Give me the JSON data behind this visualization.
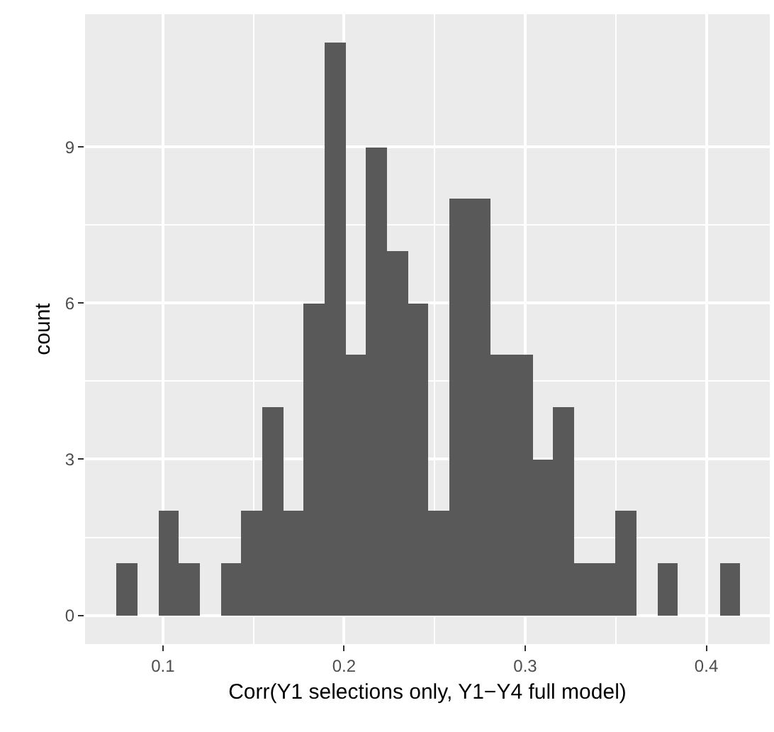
{
  "chart_data": {
    "type": "histogram",
    "xlabel": "Corr(Y1 selections only, Y1−Y4 full model)",
    "ylabel": "count",
    "bins": [
      0.0744,
      0.0859,
      0.0974,
      0.1088,
      0.1203,
      0.1318,
      0.1433,
      0.1548,
      0.1662,
      0.1777,
      0.1892,
      0.2007,
      0.2122,
      0.2236,
      0.2351,
      0.2466,
      0.2581,
      0.2696,
      0.281,
      0.2925,
      0.304,
      0.3155,
      0.327,
      0.3384,
      0.3499,
      0.3614,
      0.3729,
      0.3844,
      0.3958,
      0.4073,
      0.4188
    ],
    "values": [
      1,
      0,
      2,
      1,
      0,
      1,
      2,
      4,
      2,
      6,
      11,
      5,
      9,
      7,
      6,
      2,
      8,
      8,
      5,
      5,
      3,
      4,
      1,
      1,
      2,
      0,
      1,
      0,
      0,
      1
    ],
    "color": "#595959",
    "xlim": [
      0.057,
      0.435
    ],
    "xticks": [
      0.1,
      0.2,
      0.3,
      0.4
    ],
    "ylim": [
      -0.55,
      11.55
    ],
    "yticks": [
      0,
      3,
      6,
      9
    ],
    "grid": true
  }
}
